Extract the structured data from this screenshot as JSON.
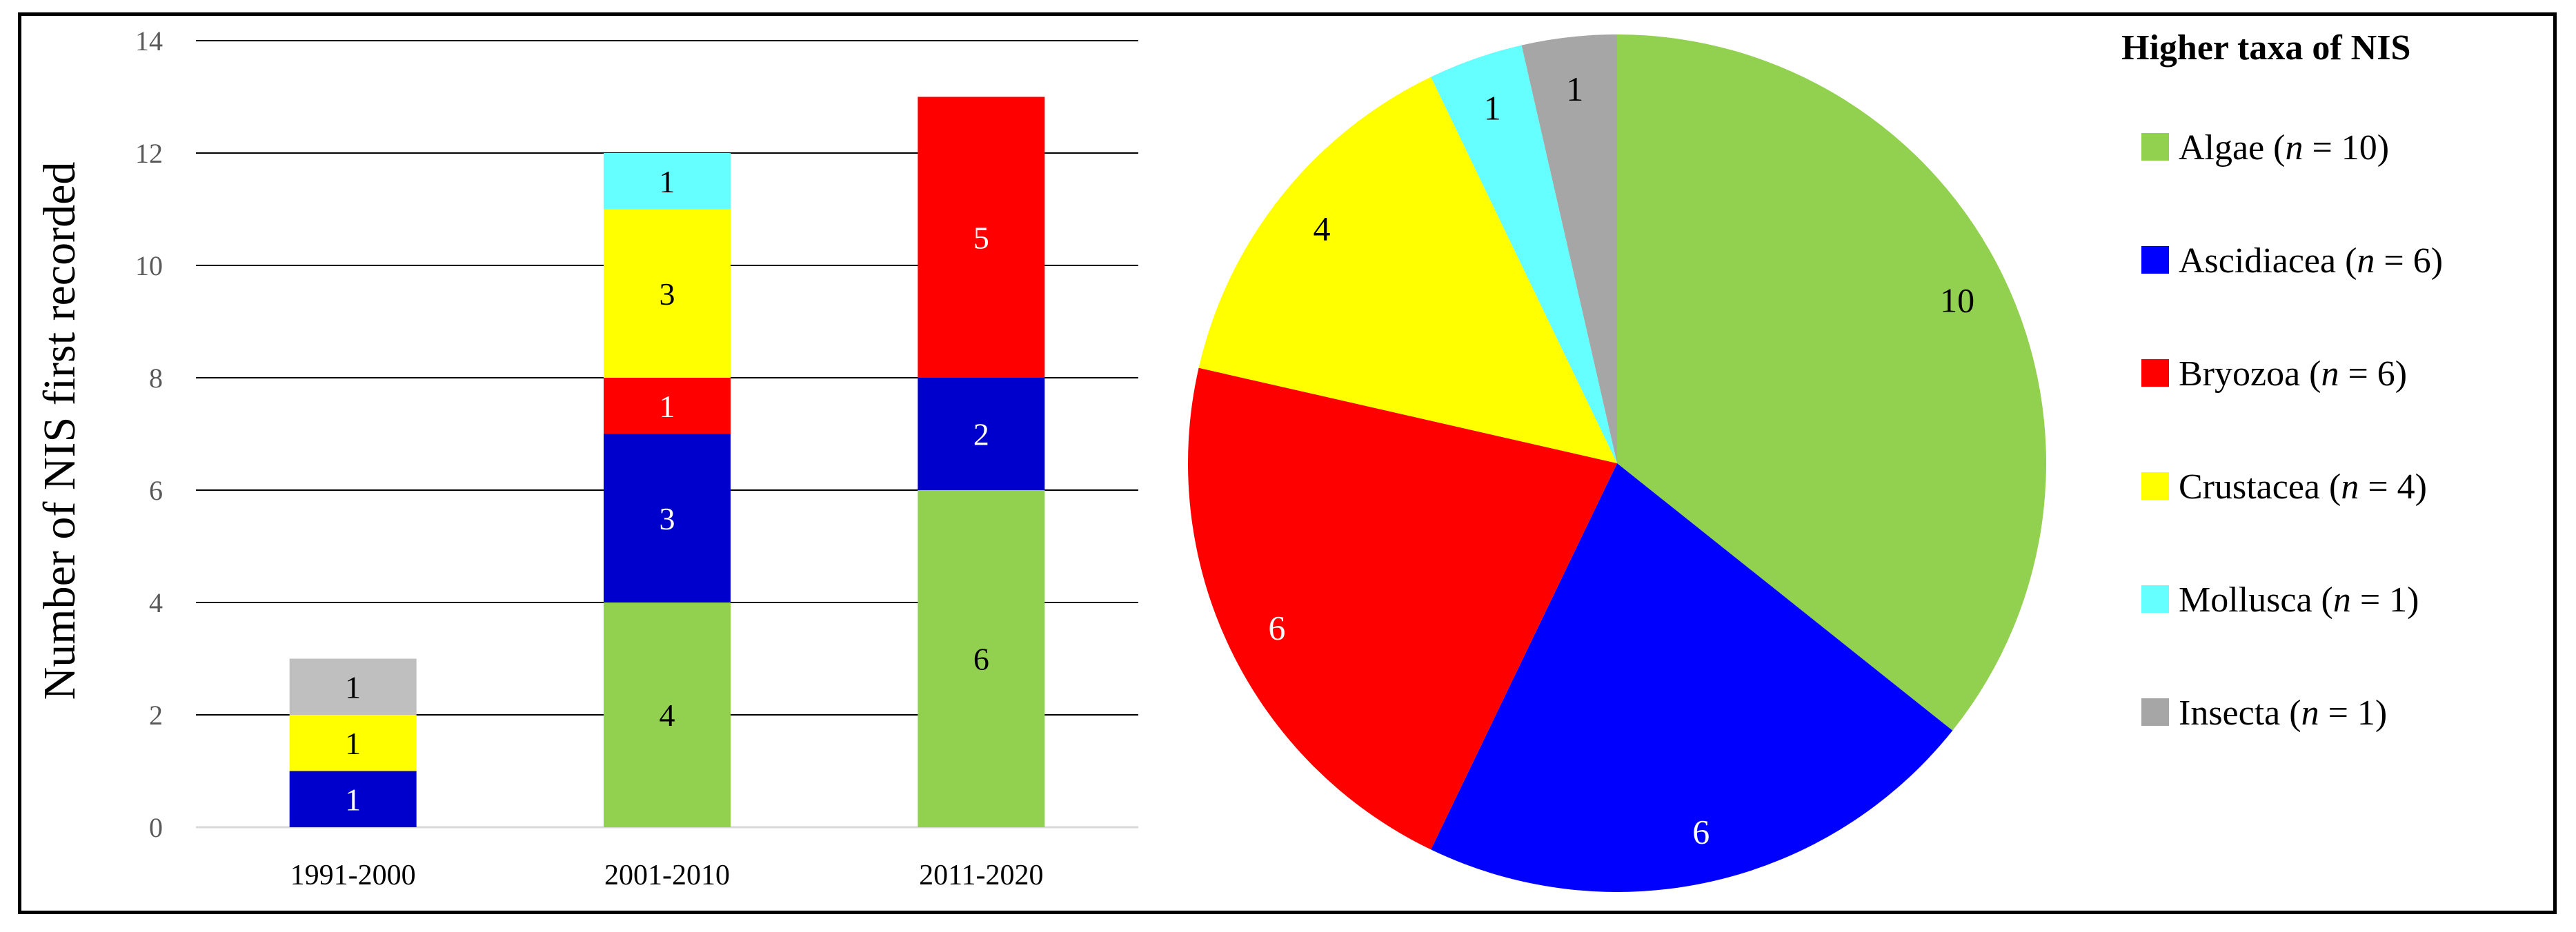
{
  "chart_data": [
    {
      "type": "bar",
      "stacked": true,
      "ylabel": "Number of NIS first recorded",
      "xlabel": "",
      "ylim": [
        0,
        14
      ],
      "yticks": [
        0,
        2,
        4,
        6,
        8,
        10,
        12,
        14
      ],
      "grid": true,
      "categories": [
        "1991-2000",
        "2001-2010",
        "2011-2020"
      ],
      "series": [
        {
          "name": "Algae",
          "color": "#92d050",
          "values": [
            0,
            4,
            6
          ]
        },
        {
          "name": "Ascidiacea",
          "color": "#0000cc",
          "values": [
            1,
            3,
            2
          ]
        },
        {
          "name": "Bryozoa",
          "color": "#ff0000",
          "values": [
            0,
            1,
            5
          ]
        },
        {
          "name": "Crustacea",
          "color": "#ffff00",
          "values": [
            1,
            3,
            0
          ]
        },
        {
          "name": "Mollusca",
          "color": "#66ffff",
          "values": [
            0,
            1,
            0
          ]
        },
        {
          "name": "Insecta",
          "color": "#bfbfbf",
          "values": [
            1,
            0,
            0
          ]
        }
      ]
    },
    {
      "type": "pie",
      "start": "12 o'clock",
      "direction": "clockwise",
      "slices": [
        {
          "label": "Algae",
          "value": 10,
          "color": "#92d050"
        },
        {
          "label": "Ascidiacea",
          "value": 6,
          "color": "#0000ff"
        },
        {
          "label": "Bryozoa",
          "value": 6,
          "color": "#ff0000"
        },
        {
          "label": "Crustacea",
          "value": 4,
          "color": "#ffff00"
        },
        {
          "label": "Mollusca",
          "value": 1,
          "color": "#66ffff"
        },
        {
          "label": "Insecta",
          "value": 1,
          "color": "#a6a6a6"
        }
      ]
    }
  ],
  "legend": {
    "title": "Higher taxa of NIS",
    "placement": "right",
    "items": [
      {
        "name": "Algae",
        "n": "10",
        "color": "#92d050"
      },
      {
        "name": "Ascidiacea",
        "n": "6",
        "color": "#0000ff"
      },
      {
        "name": "Bryozoa",
        "n": "6",
        "color": "#ff0000"
      },
      {
        "name": "Crustacea",
        "n": "4",
        "color": "#ffff00"
      },
      {
        "name": "Mollusca",
        "n": "1",
        "color": "#66ffff"
      },
      {
        "name": "Insecta",
        "n": "1",
        "color": "#a6a6a6"
      }
    ]
  }
}
